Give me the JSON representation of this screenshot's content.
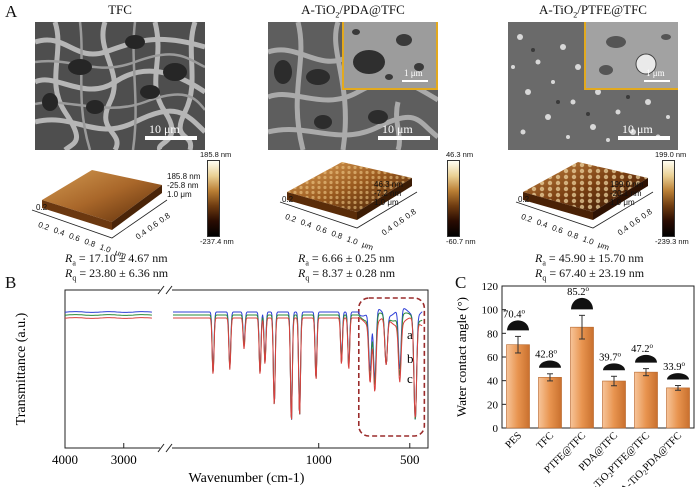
{
  "panel_a": {
    "label": "A",
    "sem_titles": {
      "tfc": "TFC",
      "pda_base": "A-TiO",
      "pda_sub": "2",
      "pda_rest": "/PDA@TFC",
      "ptfe_base": "A-TiO",
      "ptfe_sub": "2",
      "ptfe_rest": "/PTFE@TFC"
    },
    "scale_main": "10 μm",
    "scale_inset": "1 μm",
    "afm": [
      {
        "z_ticks": [
          "185.8 nm",
          "-25.8 nm",
          "1.0 μm"
        ],
        "cbar_top": "185.8 nm",
        "cbar_bottom": "-237.4 nm",
        "ra": "17.10 ± 4.67 nm",
        "rq": "23.80 ± 6.36 nm"
      },
      {
        "z_ticks": [
          "46.3 nm",
          "-7.2 nm",
          "1.0 μm"
        ],
        "cbar_top": "46.3 nm",
        "cbar_bottom": "-60.7 nm",
        "ra": "6.66 ± 0.25 nm",
        "rq": "8.37 ± 0.28 nm"
      },
      {
        "z_ticks": [
          "199.0 nm",
          "-20.1 nm",
          "1.0 μm"
        ],
        "cbar_top": "199.0 nm",
        "cbar_bottom": "-239.3 nm",
        "ra": "45.90 ± 15.70 nm",
        "rq": "67.40 ± 23.19 nm"
      }
    ],
    "afm_axis": {
      "side_ticks": [
        "0.2",
        "0.4",
        "0.6",
        "0.8",
        "1.0 μm"
      ],
      "corner_tick": "0.2"
    },
    "ra_label": "R",
    "ra_sub": "a",
    "rq_label": "R",
    "rq_sub": "q",
    "eq": " = "
  },
  "panel_b": {
    "label": "B",
    "chart_data": {
      "type": "line",
      "title": "",
      "xlabel": "Wavenumber (cm-1)",
      "ylabel": "Transmittance (a.u.)",
      "x_ticks": [
        "4000",
        "3000",
        "1000",
        "500"
      ],
      "x_range": [
        4000,
        400
      ],
      "axis_break": true,
      "series": [
        {
          "name": "a",
          "color": "#2f3fd6"
        },
        {
          "name": "b",
          "color": "#2a8a3a"
        },
        {
          "name": "c",
          "color": "#d9413f"
        }
      ],
      "absorption_bands_cm1": [
        1580,
        1488,
        1410,
        1322,
        1295,
        1244,
        1150,
        1105,
        1015,
        875,
        835,
        718,
        692,
        630,
        555,
        470
      ],
      "highlight_region_cm1": [
        780,
        420
      ]
    }
  },
  "panel_c": {
    "label": "C",
    "chart_data": {
      "type": "bar",
      "categories": [
        "PES",
        "TFC",
        "PTFE@TFC",
        "PDA@TFC",
        "A-TiO2PTFE@TFC",
        "A-TiO2PDA@TFC"
      ],
      "category_labels": [
        {
          "base": "PES",
          "sub": "",
          "rest": ""
        },
        {
          "base": "TFC",
          "sub": "",
          "rest": ""
        },
        {
          "base": "PTFE@TFC",
          "sub": "",
          "rest": ""
        },
        {
          "base": "PDA@TFC",
          "sub": "",
          "rest": ""
        },
        {
          "base": "A-TiO",
          "sub": "2",
          "rest": "PTFE@TFC"
        },
        {
          "base": "A-TiO",
          "sub": "2",
          "rest": "PDA@TFC"
        }
      ],
      "values": [
        70.4,
        42.8,
        85.2,
        39.7,
        47.2,
        33.9
      ],
      "errors": [
        7,
        3,
        10,
        4,
        3,
        2
      ],
      "value_labels": [
        "70.4",
        "42.8",
        "85.2",
        "39.7",
        "47.2",
        "33.9"
      ],
      "degree_sign": "o",
      "xlabel": "",
      "ylabel": "Water contact angle (°)",
      "ylim": [
        0,
        120
      ],
      "bar_color": "#e8944f"
    }
  }
}
